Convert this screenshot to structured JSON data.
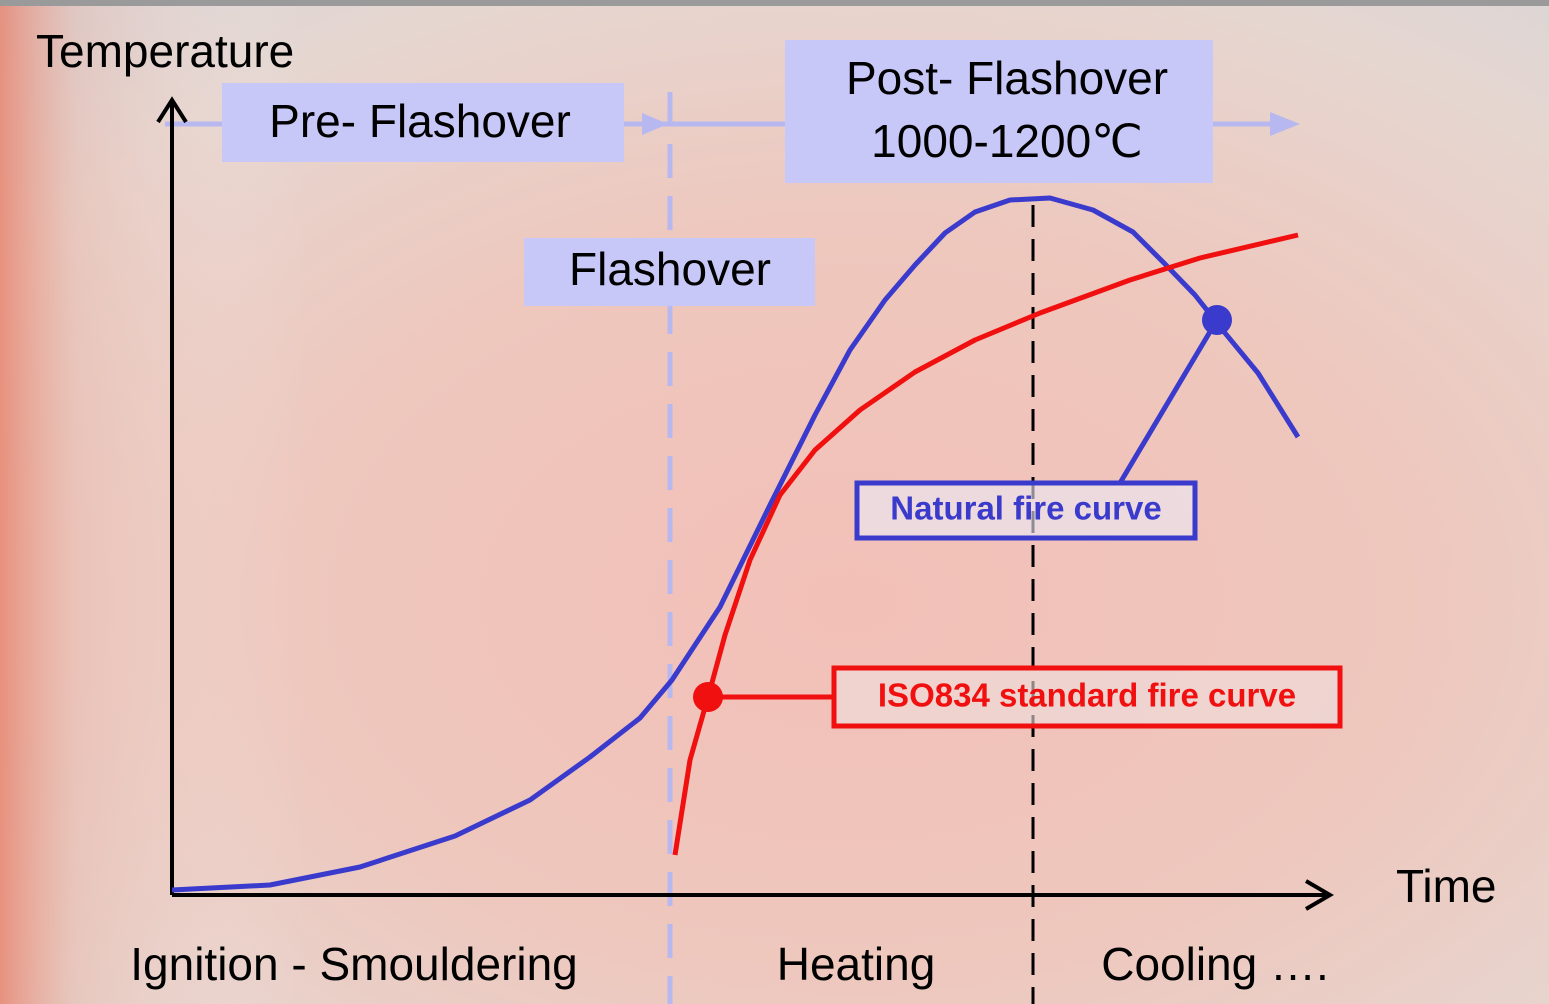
{
  "axes": {
    "y_label": "Temperature",
    "x_label": "Time"
  },
  "phases": {
    "pre": "Pre- Flashover",
    "post": "Post- Flashover",
    "post_range": "1000-1200℃",
    "flashover": "Flashover"
  },
  "legend": {
    "natural": "Natural fire curve",
    "iso": "ISO834 standard fire curve"
  },
  "stages": [
    "Ignition - Smouldering",
    "Heating",
    "Cooling …."
  ]
}
